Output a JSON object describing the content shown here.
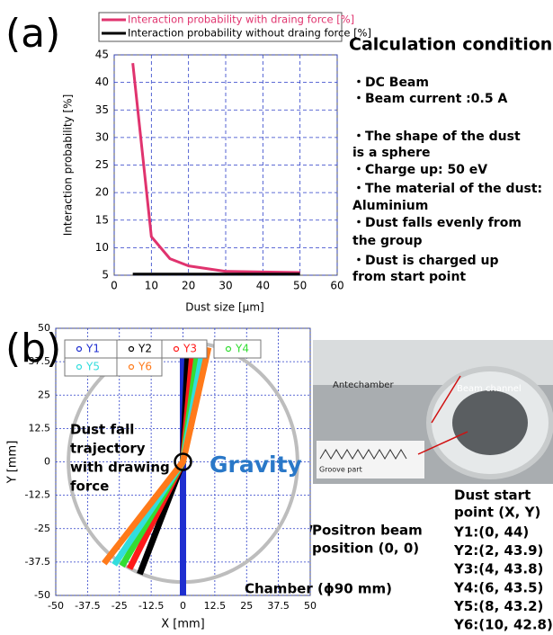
{
  "chart_data": [
    {
      "type": "line",
      "panel": "(a)",
      "series": [
        {
          "name": "Interaction probability with draing force [%]",
          "color": "#e0336e",
          "x": [
            5,
            10,
            15,
            20,
            30,
            40,
            50
          ],
          "values": [
            43.5,
            12,
            8,
            6.7,
            5.7,
            5.6,
            5.5
          ]
        },
        {
          "name": "Interaction probability without draing force [%]",
          "color": "#000000",
          "x": [
            5,
            10,
            15,
            20,
            30,
            40,
            50
          ],
          "values": [
            5.2,
            5.2,
            5.2,
            5.2,
            5.2,
            5.2,
            5.2
          ]
        }
      ],
      "xlabel": "Dust size [μm]",
      "ylabel": "Interaction probability [%]",
      "xlim": [
        0,
        60
      ],
      "xticks": [
        0,
        10,
        20,
        30,
        40,
        50,
        60
      ],
      "ylim": [
        5,
        45
      ],
      "yticks": [
        5,
        10,
        15,
        20,
        25,
        30,
        35,
        40,
        45
      ],
      "grid": true
    },
    {
      "type": "line",
      "panel": "(b)",
      "series": [
        {
          "name": "Y1",
          "color": "#1f2fd0",
          "x": [
            0,
            0,
            0
          ],
          "values": [
            44,
            0,
            -50
          ]
        },
        {
          "name": "Y2",
          "color": "#000000",
          "x": [
            2,
            0,
            -17
          ],
          "values": [
            43.9,
            0,
            -42
          ]
        },
        {
          "name": "Y3",
          "color": "#ff1a1a",
          "x": [
            4,
            0,
            -21
          ],
          "values": [
            43.8,
            0,
            -40
          ]
        },
        {
          "name": "Y4",
          "color": "#33dd33",
          "x": [
            6,
            0,
            -24
          ],
          "values": [
            43.5,
            0,
            -39
          ]
        },
        {
          "name": "Y5",
          "color": "#33dddd",
          "x": [
            8,
            0,
            -27
          ],
          "values": [
            43.2,
            0,
            -38.5
          ]
        },
        {
          "name": "Y6",
          "color": "#ff7a1a",
          "x": [
            10,
            0,
            -31
          ],
          "values": [
            42.8,
            0,
            -38
          ]
        }
      ],
      "xlabel": "X [mm]",
      "ylabel": "Y [mm]",
      "xlim": [
        -50,
        50
      ],
      "xticks": [
        -50,
        -37.5,
        -25,
        -12.5,
        0,
        12.5,
        25,
        37.5,
        50
      ],
      "ylim": [
        -50,
        50
      ],
      "yticks": [
        -50,
        -37.5,
        -25,
        -12.5,
        0,
        12.5,
        25,
        37.5,
        50
      ],
      "grid": true,
      "annotations": {
        "trajectory": [
          "Dust fall",
          "trajectory",
          "with drawing",
          " force"
        ],
        "gravity": "Gravity",
        "beam": [
          "Positron beam",
          "position (0, 0)"
        ],
        "chamber": {
          "label": "Chamber (ϕ90 mm)",
          "diameter": 90
        }
      }
    }
  ],
  "conditions": {
    "title": "Calculation condition",
    "items": [
      [
        "・DC Beam"
      ],
      [
        "・Beam current :0.5 A"
      ],
      [
        "・The shape of the dust",
        "   is a sphere"
      ],
      [
        "・Charge up: 50 eV"
      ],
      [
        "・The material of the dust:",
        "   Aluminium"
      ],
      [
        "・Dust falls evenly from",
        "   the group"
      ],
      [
        "・Dust is charged up",
        "    from start point"
      ]
    ]
  },
  "photo": {
    "labels": [
      "Antechamber",
      "Beam channel",
      "Groove part"
    ]
  },
  "start_points": {
    "title": [
      "Dust start",
      " point (X, Y)"
    ],
    "items": [
      "Y1:(0, 44)",
      "Y2:(2, 43.9)",
      "Y3:(4, 43.8)",
      "Y4:(6, 43.5)",
      "Y5:(8, 43.2)",
      "Y6:(10, 42.8)"
    ]
  }
}
